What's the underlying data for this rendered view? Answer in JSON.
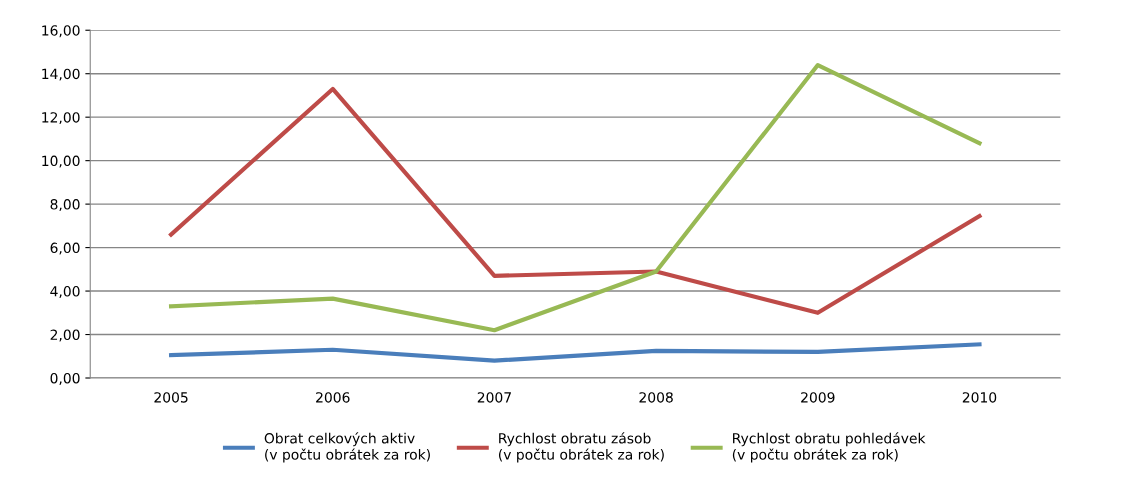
{
  "chart_data": {
    "type": "line",
    "categories": [
      "2005",
      "2006",
      "2007",
      "2008",
      "2009",
      "2010"
    ],
    "series": [
      {
        "name": "Obrat celkových aktiv\n(v počtu obrátek za rok)",
        "color": "#4a7ebb",
        "values": [
          1.05,
          1.3,
          0.8,
          1.25,
          1.2,
          1.55
        ]
      },
      {
        "name": "Rychlost obratu zásob\n(v počtu obrátek za rok)",
        "color": "#be4b48",
        "values": [
          6.6,
          13.3,
          4.7,
          4.9,
          3.0,
          7.45
        ]
      },
      {
        "name": "Rychlost obratu pohledávek\n(v počtu obrátek za rok)",
        "color": "#98b954",
        "values": [
          3.3,
          3.65,
          2.2,
          4.9,
          14.4,
          10.8
        ]
      }
    ],
    "ylim": [
      0,
      16
    ],
    "yticks": [
      {
        "value": 0,
        "label": "0,00"
      },
      {
        "value": 2,
        "label": "2,00"
      },
      {
        "value": 4,
        "label": "4,00"
      },
      {
        "value": 6,
        "label": "6,00"
      },
      {
        "value": 8,
        "label": "8,00"
      },
      {
        "value": 10,
        "label": "10,00"
      },
      {
        "value": 12,
        "label": "12,00"
      },
      {
        "value": 14,
        "label": "14,00"
      },
      {
        "value": 16,
        "label": "16,00"
      }
    ],
    "grid": "y",
    "legend": "bottom",
    "marker": "none",
    "line_style": "solid"
  }
}
